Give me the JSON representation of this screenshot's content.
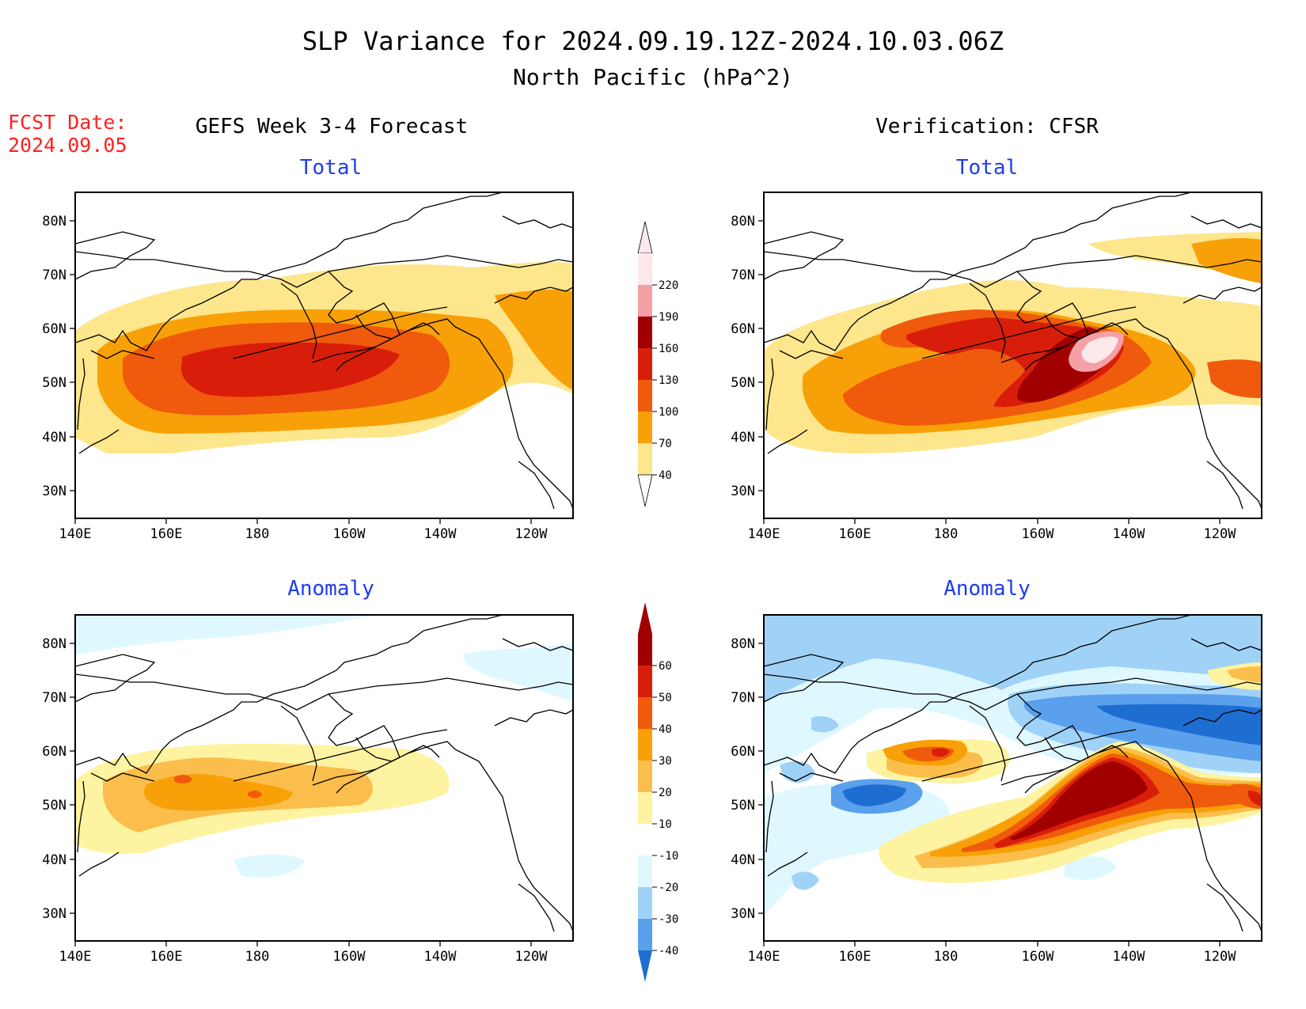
{
  "title": {
    "line1": "SLP Variance for 2024.09.19.12Z-2024.10.03.06Z",
    "line2": "North Pacific (hPa^2)"
  },
  "fcst": {
    "line1": "FCST Date:",
    "line2": "2024.09.05"
  },
  "columns": {
    "left": "GEFS Week 3-4 Forecast",
    "right": "Verification: CFSR"
  },
  "panel_titles": {
    "total": "Total",
    "anomaly": "Anomaly"
  },
  "axes": {
    "lat_ticks": [
      "80N",
      "70N",
      "60N",
      "50N",
      "40N",
      "30N"
    ],
    "lon_ticks": [
      "140E",
      "160E",
      "180",
      "160W",
      "140W",
      "120W"
    ]
  },
  "legends": {
    "total": {
      "labels": [
        "220",
        "190",
        "160",
        "130",
        "100",
        "70",
        "40"
      ],
      "colors": [
        "#fde8ec",
        "#f4a0a4",
        "#a00000",
        "#d81e0a",
        "#f05a0c",
        "#f8a008",
        "#fde68c"
      ]
    },
    "anomaly": {
      "labels": [
        "60",
        "50",
        "40",
        "30",
        "20",
        "10",
        "-10",
        "-20",
        "-30",
        "-40"
      ],
      "colors": [
        "#a00000",
        "#d81e0a",
        "#f05a0c",
        "#f8a008",
        "#fbbe4c",
        "#fef3a0",
        "#ffffff",
        "#dff8ff",
        "#a0d2f8",
        "#5aa0ec",
        "#1e6ed2"
      ]
    }
  },
  "colors": {
    "title_text": "#000000",
    "panel_title": "#1f3cf0",
    "fcst_text": "#ff2020"
  }
}
